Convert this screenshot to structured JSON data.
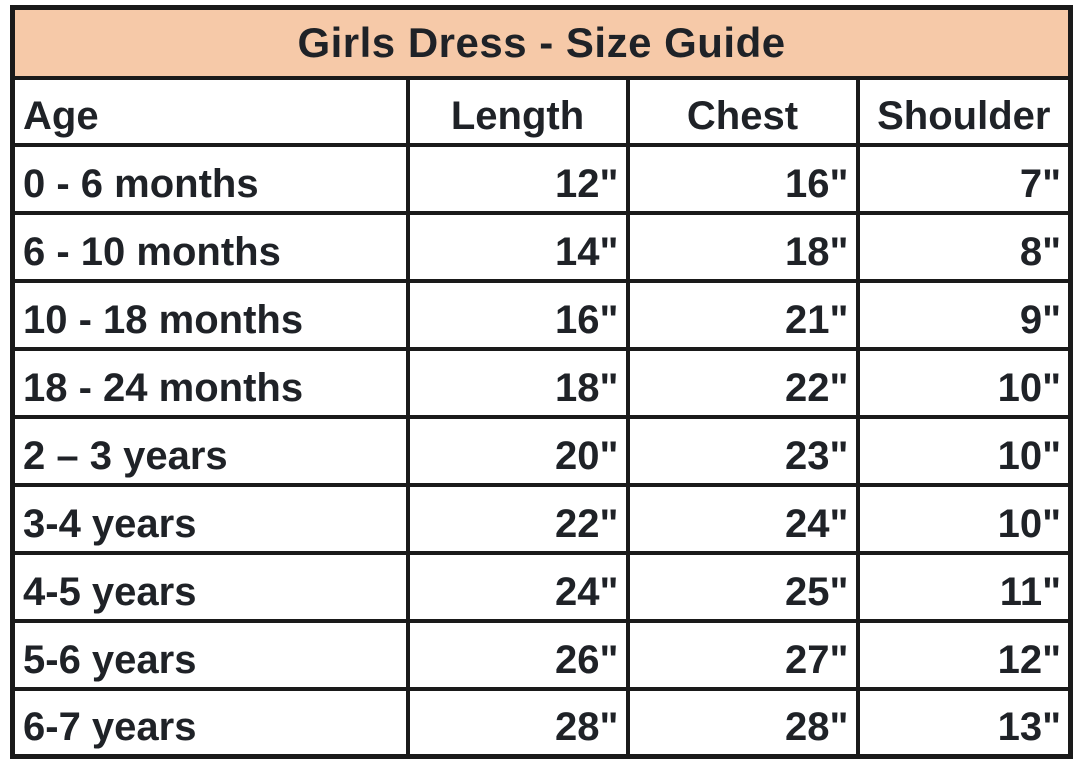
{
  "title": "Girls Dress - Size Guide",
  "colors": {
    "title_bg": "#F6C9A8",
    "border": "#1A1A1A",
    "text": "#1F2227",
    "page_bg": "#FFFFFF"
  },
  "table": {
    "columns": [
      "Age",
      "Length",
      "Chest",
      "Shoulder"
    ],
    "rows": [
      [
        "0 - 6 months",
        "12\"",
        "16\"",
        "7\""
      ],
      [
        "6 - 10 months",
        "14\"",
        "18\"",
        "8\""
      ],
      [
        "10 - 18 months",
        "16\"",
        "21\"",
        "9\""
      ],
      [
        "18 - 24 months",
        "18\"",
        "22\"",
        "10\""
      ],
      [
        "2 – 3 years",
        "20\"",
        "23\"",
        "10\""
      ],
      [
        "3-4 years",
        "22\"",
        "24\"",
        "10\""
      ],
      [
        "4-5 years",
        "24\"",
        "25\"",
        "11\""
      ],
      [
        "5-6 years",
        "26\"",
        "27\"",
        "12\""
      ],
      [
        "6-7 years",
        "28\"",
        "28\"",
        "13\""
      ]
    ]
  }
}
